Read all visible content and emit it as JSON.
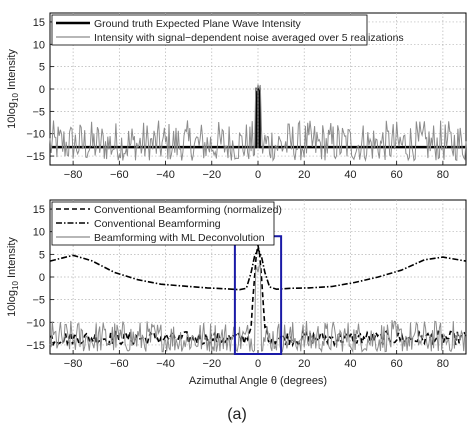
{
  "figure": {
    "caption": "(a)"
  },
  "chart_data": [
    {
      "type": "line",
      "ylabel_parts": [
        "10log",
        "10",
        " Intensity"
      ],
      "xlabel": "",
      "xlim": [
        -90,
        90
      ],
      "ylim": [
        -17,
        17
      ],
      "xticks": [
        -80,
        -60,
        -40,
        -20,
        0,
        20,
        40,
        60,
        80
      ],
      "yticks": [
        15,
        10,
        5,
        0,
        -5,
        -10,
        -15
      ],
      "grid": true,
      "legend_position": "top-left",
      "series": [
        {
          "name": "Ground truth Expected Plane Wave Intensity",
          "style": "solid-thick",
          "color": "#000000",
          "baseline": -13,
          "peak": {
            "x_start": -0.7,
            "x_end": 0.7,
            "value": 0
          }
        },
        {
          "name": "Intensity with signal−dependent noise averaged over 5 realizations",
          "style": "solid-thin",
          "color": "#8c8c8c",
          "noise_range": [
            -16,
            -7
          ],
          "peak_value": 1.5
        }
      ]
    },
    {
      "type": "line",
      "ylabel_parts": [
        "10log",
        "10",
        " Intensity"
      ],
      "xlabel": "Azimuthal Angle θ (degrees)",
      "xlim": [
        -90,
        90
      ],
      "ylim": [
        -17,
        17
      ],
      "xticks": [
        -80,
        -60,
        -40,
        -20,
        0,
        20,
        40,
        60,
        80
      ],
      "yticks": [
        15,
        10,
        5,
        0,
        -5,
        -10,
        -15
      ],
      "grid": true,
      "legend_position": "top-left",
      "highlight_box": {
        "x": [
          -10,
          10
        ],
        "y": [
          -17,
          9
        ],
        "color": "#1a1aa6"
      },
      "series": [
        {
          "name": "Conventional Beamforming (normalized)",
          "style": "dashed",
          "color": "#000000",
          "baseline_range": [
            -15,
            -12
          ],
          "peak_value": 7
        },
        {
          "name": "Conventional Beamforming",
          "style": "dashdot",
          "color": "#000000",
          "points": [
            [
              -90,
              3.5
            ],
            [
              -80,
              4.8
            ],
            [
              -72,
              3.6
            ],
            [
              -62,
              1.0
            ],
            [
              -52,
              -0.6
            ],
            [
              -42,
              -1.6
            ],
            [
              -32,
              -2.0
            ],
            [
              -22,
              -2.4
            ],
            [
              -14,
              -2.6
            ],
            [
              -8,
              -2.8
            ],
            [
              -5,
              -2.5
            ],
            [
              -3,
              1.0
            ],
            [
              -1.5,
              4.5
            ],
            [
              0,
              6.2
            ],
            [
              1.5,
              4.5
            ],
            [
              3,
              1.0
            ],
            [
              5,
              -2.2
            ],
            [
              8,
              -2.7
            ],
            [
              14,
              -2.5
            ],
            [
              22,
              -2.4
            ],
            [
              32,
              -2.1
            ],
            [
              42,
              -1.2
            ],
            [
              52,
              0.0
            ],
            [
              62,
              1.5
            ],
            [
              72,
              3.8
            ],
            [
              80,
              4.4
            ],
            [
              90,
              3.5
            ]
          ]
        },
        {
          "name": "Beamforming with ML Deconvolution",
          "style": "solid-thin",
          "color": "#8c8c8c",
          "noise_range": [
            -16.5,
            -9.5
          ],
          "peak_value": 2.5
        }
      ]
    }
  ]
}
